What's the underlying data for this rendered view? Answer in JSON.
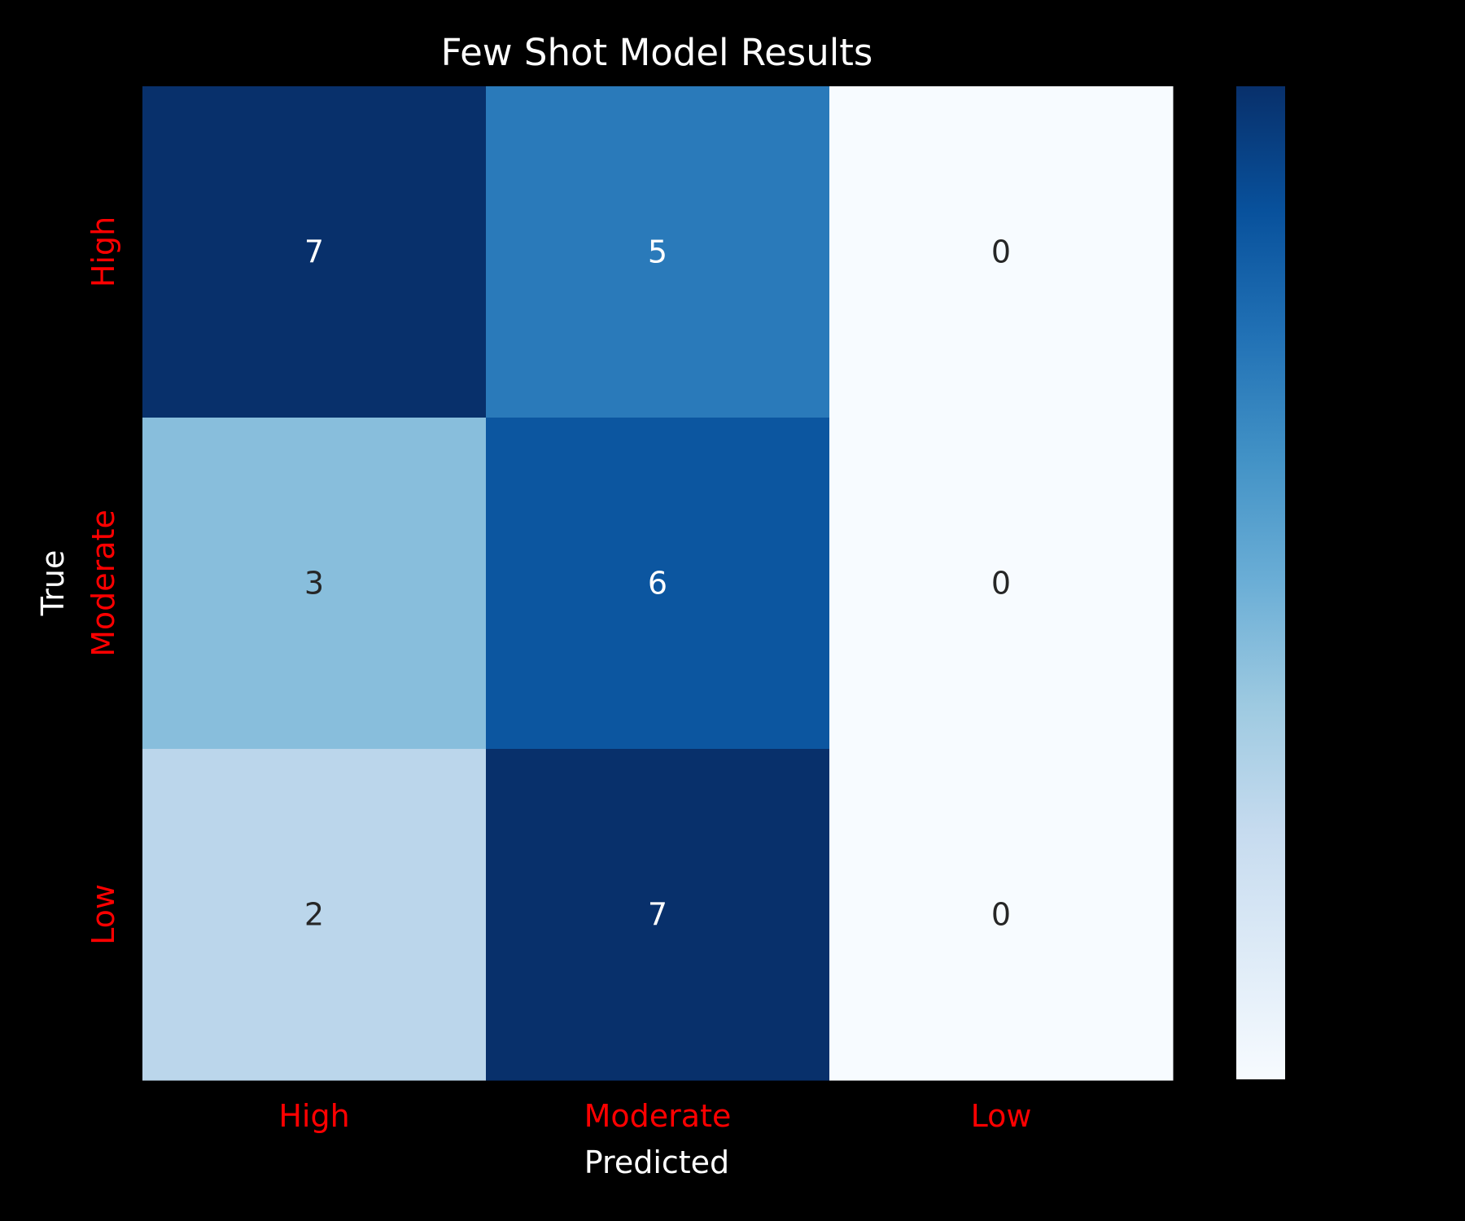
{
  "chart_data": {
    "type": "heatmap",
    "title": "Few Shot Model Results",
    "xlabel": "Predicted",
    "ylabel": "True",
    "x_categories": [
      "High",
      "Moderate",
      "Low"
    ],
    "y_categories": [
      "High",
      "Moderate",
      "Low"
    ],
    "values": [
      [
        7,
        5,
        0
      ],
      [
        3,
        6,
        0
      ],
      [
        2,
        7,
        0
      ]
    ],
    "colormap": "Blues",
    "vmin": 0,
    "vmax": 7,
    "tick_label_color": "#ff0000",
    "colorbar": true
  }
}
